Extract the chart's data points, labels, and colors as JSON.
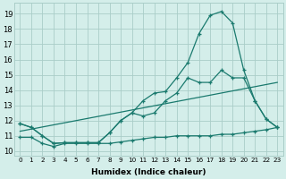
{
  "xlabel": "Humidex (Indice chaleur)",
  "bg_color": "#d4eeea",
  "grid_color": "#aacdc8",
  "line_color": "#1a7a6e",
  "xlim": [
    -0.5,
    23.5
  ],
  "ylim": [
    9.7,
    19.7
  ],
  "xtick_labels": [
    "0",
    "1",
    "2",
    "3",
    "4",
    "5",
    "6",
    "7",
    "8",
    "9",
    "10",
    "11",
    "12",
    "13",
    "14",
    "15",
    "16",
    "17",
    "18",
    "19",
    "20",
    "21",
    "22",
    "23"
  ],
  "ytick_labels": [
    "10",
    "11",
    "12",
    "13",
    "14",
    "15",
    "16",
    "17",
    "18",
    "19"
  ],
  "ytick_vals": [
    10,
    11,
    12,
    13,
    14,
    15,
    16,
    17,
    18,
    19
  ],
  "line1_x": [
    0,
    1,
    2,
    3,
    4,
    5,
    6,
    7,
    8,
    9,
    10,
    11,
    12,
    13,
    14,
    15,
    16,
    17,
    18,
    19,
    20,
    21,
    22,
    23
  ],
  "line1_y": [
    11.8,
    11.55,
    11.0,
    10.5,
    10.55,
    10.55,
    10.55,
    10.55,
    11.2,
    12.0,
    12.5,
    13.3,
    13.8,
    13.9,
    14.8,
    15.8,
    17.7,
    18.9,
    19.15,
    18.4,
    15.3,
    13.3,
    12.1,
    11.55
  ],
  "line2_x": [
    0,
    1,
    2,
    3,
    4,
    5,
    6,
    7,
    8,
    9,
    10,
    11,
    12,
    13,
    14,
    15,
    16,
    17,
    18,
    19,
    20,
    21,
    22,
    23
  ],
  "line2_y": [
    11.8,
    11.55,
    11.0,
    10.5,
    10.55,
    10.55,
    10.55,
    10.55,
    11.2,
    12.0,
    12.5,
    12.3,
    12.5,
    13.3,
    13.8,
    14.8,
    14.5,
    14.5,
    15.3,
    14.8,
    14.8,
    13.3,
    12.1,
    11.55
  ],
  "line3_x": [
    0,
    1,
    2,
    3,
    4,
    5,
    6,
    7,
    8,
    9,
    10,
    11,
    12,
    13,
    14,
    15,
    16,
    17,
    18,
    19,
    20,
    21,
    22,
    23
  ],
  "line3_y": [
    10.9,
    10.9,
    10.5,
    10.3,
    10.5,
    10.5,
    10.5,
    10.5,
    10.5,
    10.6,
    10.7,
    10.8,
    10.9,
    10.9,
    11.0,
    11.0,
    11.0,
    11.0,
    11.1,
    11.1,
    11.2,
    11.3,
    11.4,
    11.55
  ],
  "line4_x": [
    0,
    23
  ],
  "line4_y": [
    11.3,
    14.5
  ]
}
